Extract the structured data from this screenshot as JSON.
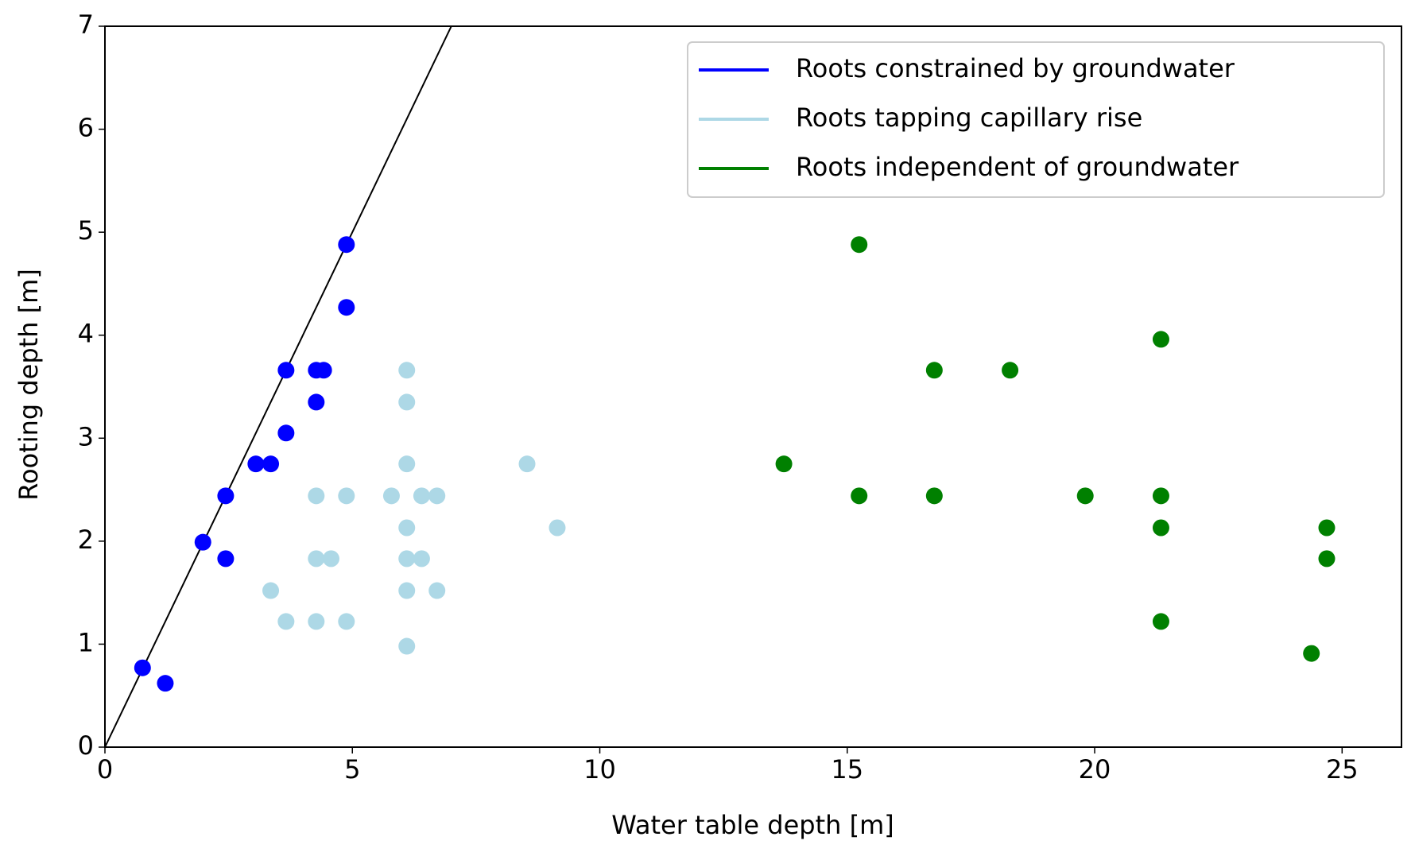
{
  "chart_data": {
    "type": "scatter",
    "x_label": "Water table depth [m]",
    "y_label": "Rooting depth [m]",
    "xlim": [
      0,
      26.2
    ],
    "ylim": [
      0,
      7
    ],
    "xticks": [
      0,
      5,
      10,
      15,
      20,
      25
    ],
    "yticks": [
      0,
      1,
      2,
      3,
      4,
      5,
      6,
      7
    ],
    "legend": "upper right",
    "reference_line": {
      "x": [
        0,
        7
      ],
      "y": [
        0,
        7
      ],
      "color": "#000000"
    },
    "series": [
      {
        "name": "Roots constrained by groundwater",
        "color": "#0000ff",
        "x": [
          0.76,
          1.22,
          1.98,
          2.44,
          2.44,
          3.05,
          3.35,
          3.66,
          3.66,
          4.27,
          4.42,
          4.27,
          4.88,
          4.88
        ],
        "y": [
          0.77,
          0.62,
          1.99,
          2.44,
          1.83,
          2.75,
          2.75,
          3.05,
          3.66,
          3.66,
          3.66,
          3.35,
          4.88,
          4.27
        ]
      },
      {
        "name": "Roots tapping capillary rise",
        "color": "#add8e6",
        "x": [
          6.1,
          6.1,
          6.1,
          8.53,
          4.27,
          4.88,
          5.79,
          6.4,
          6.71,
          6.1,
          9.14,
          4.27,
          4.57,
          6.1,
          6.4,
          3.35,
          6.1,
          6.71,
          3.66,
          4.27,
          4.88,
          6.1
        ],
        "y": [
          3.66,
          3.35,
          2.75,
          2.75,
          2.44,
          2.44,
          2.44,
          2.44,
          2.44,
          2.13,
          2.13,
          1.83,
          1.83,
          1.83,
          1.83,
          1.52,
          1.52,
          1.52,
          1.22,
          1.22,
          1.22,
          0.98
        ]
      },
      {
        "name": "Roots independent of groundwater",
        "color": "#008000",
        "x": [
          15.24,
          21.34,
          16.76,
          18.29,
          13.72,
          15.24,
          16.76,
          19.81,
          21.34,
          21.34,
          24.69,
          24.69,
          21.34,
          24.38
        ],
        "y": [
          4.88,
          3.96,
          3.66,
          3.66,
          2.75,
          2.44,
          2.44,
          2.44,
          2.44,
          2.13,
          2.13,
          1.83,
          1.22,
          0.91
        ]
      }
    ]
  }
}
